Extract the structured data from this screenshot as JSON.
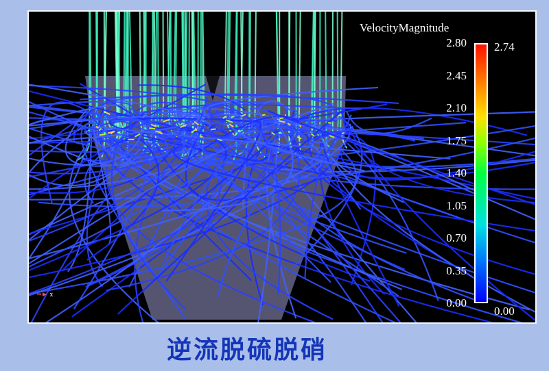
{
  "colorbar": {
    "title": "VelocityMagnitude",
    "ticks": [
      "2.80",
      "2.45",
      "2.10",
      "1.75",
      "1.40",
      "1.05",
      "0.70",
      "0.35",
      "0.00"
    ],
    "range": [
      0.0,
      2.8
    ],
    "max_label": "2.74",
    "min_label": "0.00",
    "colors": [
      "#0000ff",
      "#00e0e0",
      "#00ff40",
      "#ffe000",
      "#ff1000"
    ]
  },
  "axis_label": "x",
  "caption": "逆流脱硫脱硝",
  "colors": {
    "background": "#a9bfea",
    "caption": "#1535b8",
    "streamline_low": "#1a2cff",
    "streamline_high": "#40f0c0",
    "vessel": "#9a9ad0"
  }
}
